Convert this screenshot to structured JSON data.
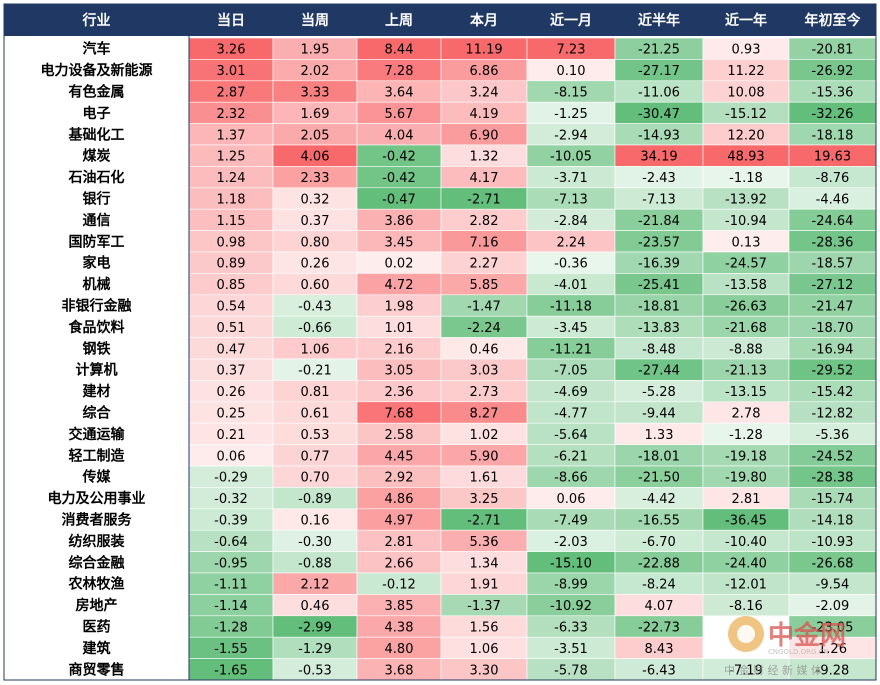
{
  "chart_data": {
    "type": "heatmap",
    "columns": [
      "行业",
      "当日",
      "当周",
      "上周",
      "本月",
      "近一月",
      "近半年",
      "近一年",
      "年初至今"
    ],
    "rows": [
      {
        "industry": "汽车",
        "values": [
          3.26,
          1.95,
          8.44,
          11.19,
          7.23,
          -21.25,
          0.93,
          -20.81
        ]
      },
      {
        "industry": "电力设备及新能源",
        "values": [
          3.01,
          2.02,
          7.28,
          6.86,
          0.1,
          -27.17,
          11.22,
          -26.92
        ]
      },
      {
        "industry": "有色金属",
        "values": [
          2.87,
          3.33,
          3.64,
          3.24,
          -8.15,
          -11.06,
          10.08,
          -15.36
        ]
      },
      {
        "industry": "电子",
        "values": [
          2.32,
          1.69,
          5.67,
          4.19,
          -1.25,
          -30.47,
          -15.12,
          -32.26
        ]
      },
      {
        "industry": "基础化工",
        "values": [
          1.37,
          2.05,
          4.04,
          6.9,
          -2.94,
          -14.93,
          12.2,
          -18.18
        ]
      },
      {
        "industry": "煤炭",
        "values": [
          1.25,
          4.06,
          -0.42,
          1.32,
          -10.05,
          34.19,
          48.93,
          19.63
        ]
      },
      {
        "industry": "石油石化",
        "values": [
          1.24,
          2.33,
          -0.42,
          4.17,
          -3.71,
          -2.43,
          -1.18,
          -8.76
        ]
      },
      {
        "industry": "银行",
        "values": [
          1.18,
          0.32,
          -0.47,
          -2.71,
          -7.13,
          -7.13,
          -13.92,
          -4.46
        ]
      },
      {
        "industry": "通信",
        "values": [
          1.15,
          0.37,
          3.86,
          2.82,
          -2.84,
          -21.84,
          -10.94,
          -24.64
        ]
      },
      {
        "industry": "国防军工",
        "values": [
          0.98,
          0.8,
          3.45,
          7.16,
          2.24,
          -23.57,
          0.13,
          -28.36
        ]
      },
      {
        "industry": "家电",
        "values": [
          0.89,
          0.26,
          0.02,
          2.27,
          -0.36,
          -16.39,
          -24.57,
          -18.57
        ]
      },
      {
        "industry": "机械",
        "values": [
          0.85,
          0.6,
          4.72,
          5.85,
          -4.01,
          -25.41,
          -13.58,
          -27.12
        ]
      },
      {
        "industry": "非银行金融",
        "values": [
          0.54,
          -0.43,
          1.98,
          -1.47,
          -11.18,
          -18.81,
          -26.63,
          -21.47
        ]
      },
      {
        "industry": "食品饮料",
        "values": [
          0.51,
          -0.66,
          1.01,
          -2.24,
          -3.45,
          -13.83,
          -21.68,
          -18.7
        ]
      },
      {
        "industry": "钢铁",
        "values": [
          0.47,
          1.06,
          2.16,
          0.46,
          -11.21,
          -8.48,
          -8.88,
          -16.94
        ]
      },
      {
        "industry": "计算机",
        "values": [
          0.37,
          -0.21,
          3.05,
          3.03,
          -7.05,
          -27.44,
          -21.13,
          -29.52
        ]
      },
      {
        "industry": "建材",
        "values": [
          0.26,
          0.81,
          2.36,
          2.73,
          -4.69,
          -5.28,
          -13.15,
          -15.42
        ]
      },
      {
        "industry": "综合",
        "values": [
          0.25,
          0.61,
          7.68,
          8.27,
          -4.77,
          -9.44,
          2.78,
          -12.82
        ]
      },
      {
        "industry": "交通运输",
        "values": [
          0.21,
          0.53,
          2.58,
          1.02,
          -5.64,
          1.33,
          -1.28,
          -5.36
        ]
      },
      {
        "industry": "轻工制造",
        "values": [
          0.06,
          0.77,
          4.45,
          5.9,
          -6.21,
          -18.01,
          -19.18,
          -24.52
        ]
      },
      {
        "industry": "传媒",
        "values": [
          -0.29,
          0.7,
          2.92,
          1.61,
          -8.66,
          -21.5,
          -19.8,
          -28.38
        ]
      },
      {
        "industry": "电力及公用事业",
        "values": [
          -0.32,
          -0.89,
          4.86,
          3.25,
          0.06,
          -4.42,
          2.81,
          -15.74
        ]
      },
      {
        "industry": "消费者服务",
        "values": [
          -0.39,
          0.16,
          4.97,
          -2.71,
          -7.49,
          -16.55,
          -36.45,
          -14.18
        ]
      },
      {
        "industry": "纺织服装",
        "values": [
          -0.64,
          -0.3,
          2.81,
          5.36,
          -2.03,
          -6.7,
          -10.4,
          -10.93
        ]
      },
      {
        "industry": "综合金融",
        "values": [
          -0.95,
          -0.88,
          2.66,
          1.34,
          -15.1,
          -22.88,
          -24.4,
          -26.68
        ]
      },
      {
        "industry": "农林牧渔",
        "values": [
          -1.11,
          2.12,
          -0.12,
          1.91,
          -8.99,
          -8.24,
          -12.01,
          -9.54
        ]
      },
      {
        "industry": "房地产",
        "values": [
          -1.14,
          0.46,
          3.85,
          -1.37,
          -10.92,
          4.07,
          -8.16,
          -2.09
        ]
      },
      {
        "industry": "医药",
        "values": [
          -1.28,
          -2.99,
          4.38,
          1.56,
          -6.33,
          -22.73,
          "",
          "-23.05"
        ]
      },
      {
        "industry": "建筑",
        "values": [
          -1.55,
          -1.29,
          4.8,
          1.06,
          -3.51,
          8.43,
          "",
          "1.26"
        ]
      },
      {
        "industry": "商贸零售",
        "values": [
          -1.65,
          -0.53,
          3.68,
          3.3,
          -5.78,
          -6.43,
          -7.19,
          "-9.28"
        ]
      }
    ]
  },
  "colors": {
    "header_bg": "#203864",
    "header_text": "#ffffff",
    "positive_max": "#f8696b",
    "negative_max": "#63be7b",
    "neutral": "#ffffff",
    "border": "#ffffff"
  },
  "watermark": {
    "logo_text": "中金网",
    "sub_text": "CNGOLD.ORG.CN",
    "caption": "中 金 财 经 新 媒 体"
  }
}
